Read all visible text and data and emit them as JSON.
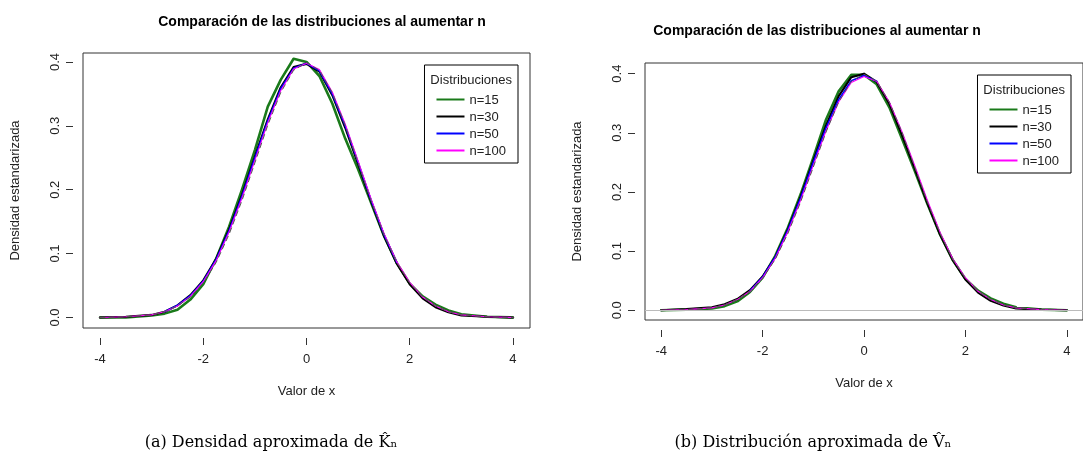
{
  "chart_data": [
    {
      "type": "line",
      "title": "Comparación de las distribuciones al aumentar n",
      "xlabel": "Valor de x",
      "ylabel": "Densidad estandarizada",
      "legend_title": "Distribuciones",
      "legend": "top right",
      "grid": false,
      "marker": "none",
      "xlim": [
        -4.33,
        4.33
      ],
      "xticks": [
        -4,
        -2,
        0,
        2,
        4
      ],
      "ylim": [
        -0.0165,
        0.414
      ],
      "yticks": [
        {
          "value": 0,
          "label": "0.0"
        },
        {
          "value": 0.1,
          "label": "0.1"
        },
        {
          "value": 0.2,
          "label": "0.2"
        },
        {
          "value": 0.3,
          "label": "0.3"
        },
        {
          "value": 0.4,
          "label": "0.4"
        }
      ],
      "x": [
        -4,
        -3.5,
        -3,
        -2.75,
        -2.5,
        -2.25,
        -2,
        -1.75,
        -1.5,
        -1.25,
        -1,
        -0.75,
        -0.5,
        -0.25,
        0,
        0.25,
        0.5,
        0.75,
        1,
        1.25,
        1.5,
        1.75,
        2,
        2.25,
        2.5,
        2.75,
        3,
        3.5,
        4
      ],
      "series": [
        {
          "color": "#555555",
          "line_style": "dashed",
          "values": [
            0,
            0.001,
            0.004,
            0.009,
            0.018,
            0.032,
            0.054,
            0.086,
            0.13,
            0.183,
            0.242,
            0.301,
            0.352,
            0.387,
            0.399,
            0.387,
            0.352,
            0.301,
            0.242,
            0.183,
            0.13,
            0.086,
            0.054,
            0.032,
            0.018,
            0.009,
            0.004,
            0.001,
            0
          ]
        },
        {
          "name": "n=15",
          "color": "#1a7a1a",
          "line_style": "solid",
          "values": [
            0,
            0,
            0.003,
            0.006,
            0.012,
            0.028,
            0.052,
            0.092,
            0.142,
            0.2,
            0.262,
            0.33,
            0.372,
            0.405,
            0.4,
            0.378,
            0.335,
            0.28,
            0.232,
            0.18,
            0.128,
            0.085,
            0.053,
            0.033,
            0.02,
            0.011,
            0.005,
            0.001,
            0
          ]
        },
        {
          "name": "n=30",
          "color": "#000000",
          "line_style": "solid",
          "values": [
            0,
            0.001,
            0.004,
            0.009,
            0.019,
            0.035,
            0.058,
            0.092,
            0.138,
            0.192,
            0.252,
            0.31,
            0.36,
            0.392,
            0.397,
            0.385,
            0.348,
            0.297,
            0.24,
            0.182,
            0.128,
            0.084,
            0.052,
            0.03,
            0.016,
            0.008,
            0.003,
            0.001,
            0
          ]
        },
        {
          "name": "n=50",
          "color": "#0000ff",
          "line_style": "solid",
          "values": [
            null,
            null,
            null,
            0.009,
            0.019,
            0.034,
            0.057,
            0.091,
            0.136,
            0.19,
            0.25,
            0.308,
            0.358,
            0.39,
            0.398,
            0.386,
            0.35,
            0.3,
            0.243,
            0.184,
            0.13,
            0.086,
            null,
            null,
            null,
            null,
            null,
            null,
            null
          ]
        },
        {
          "name": "n=100",
          "color": "#ff00ff",
          "line_style": "solid",
          "values": [
            0,
            0.001,
            0.004,
            0.009,
            0.018,
            0.033,
            0.056,
            0.089,
            0.134,
            0.187,
            0.246,
            0.305,
            0.355,
            0.389,
            0.398,
            0.388,
            0.353,
            0.303,
            0.245,
            0.186,
            0.132,
            0.087,
            0.055,
            0.032,
            0.018,
            0.009,
            0.004,
            0.001,
            0
          ]
        }
      ],
      "annotations": [
        "(a) Densidad aproximada de K̂ₙ"
      ]
    },
    {
      "type": "line",
      "title": "Comparación de las distribuciones al aumentar n",
      "xlabel": "Valor de x",
      "ylabel": "Densidad estandarizada",
      "legend_title": "Distribuciones",
      "legend": "top right",
      "grid": false,
      "marker": "none",
      "xlim": [
        -4.32,
        4.32
      ],
      "xticks": [
        -4,
        -2,
        0,
        2,
        4
      ],
      "ylim": [
        -0.0165,
        0.418
      ],
      "yticks": [
        {
          "value": 0,
          "label": "0.0"
        },
        {
          "value": 0.1,
          "label": "0.1"
        },
        {
          "value": 0.2,
          "label": "0.2"
        },
        {
          "value": 0.3,
          "label": "0.3"
        },
        {
          "value": 0.4,
          "label": "0.4"
        }
      ],
      "ref_lines": [
        {
          "axis": "y",
          "value": 0,
          "color": "#bbbbbb"
        }
      ],
      "x": [
        -4,
        -3.5,
        -3,
        -2.75,
        -2.5,
        -2.25,
        -2,
        -1.75,
        -1.5,
        -1.25,
        -1,
        -0.75,
        -0.5,
        -0.25,
        0,
        0.25,
        0.5,
        0.75,
        1,
        1.25,
        1.5,
        1.75,
        2,
        2.25,
        2.5,
        2.75,
        3,
        3.5,
        4
      ],
      "series": [
        {
          "color": "#555555",
          "line_style": "dashed",
          "values": [
            0,
            0.001,
            0.004,
            0.009,
            0.018,
            0.032,
            0.054,
            0.086,
            0.13,
            0.183,
            0.242,
            0.301,
            0.352,
            0.387,
            0.399,
            0.387,
            0.352,
            0.301,
            0.242,
            0.183,
            0.13,
            0.086,
            0.054,
            0.032,
            0.018,
            0.009,
            0.004,
            0.001,
            0
          ]
        },
        {
          "name": "n=15",
          "color": "#1a7a1a",
          "line_style": "solid",
          "values": [
            0,
            0.001,
            0.003,
            0.007,
            0.015,
            0.031,
            0.055,
            0.092,
            0.14,
            0.196,
            0.258,
            0.322,
            0.37,
            0.398,
            0.398,
            0.382,
            0.343,
            0.29,
            0.236,
            0.18,
            0.128,
            0.085,
            0.053,
            0.033,
            0.02,
            0.011,
            0.005,
            0.001,
            0
          ]
        },
        {
          "name": "n=30",
          "color": "#000000",
          "line_style": "solid",
          "values": [
            0,
            0.002,
            0.005,
            0.01,
            0.019,
            0.034,
            0.057,
            0.09,
            0.137,
            0.192,
            0.253,
            0.312,
            0.362,
            0.394,
            0.4,
            0.386,
            0.349,
            0.296,
            0.24,
            0.181,
            0.128,
            0.085,
            0.052,
            0.03,
            0.016,
            0.008,
            0.003,
            0.001,
            0
          ]
        },
        {
          "name": "n=50",
          "color": "#0000ff",
          "line_style": "solid",
          "values": [
            null,
            null,
            null,
            null,
            null,
            0.033,
            0.056,
            0.09,
            0.136,
            0.19,
            0.25,
            0.308,
            0.356,
            0.388,
            0.397,
            0.387,
            null,
            null,
            null,
            null,
            null,
            null,
            null,
            null,
            null,
            null,
            null,
            null,
            null
          ]
        },
        {
          "name": "n=100",
          "color": "#ff00ff",
          "line_style": "solid",
          "values": [
            0,
            0.001,
            0.004,
            0.009,
            0.018,
            0.032,
            0.055,
            0.088,
            0.133,
            0.186,
            0.245,
            0.303,
            0.352,
            0.385,
            0.395,
            0.387,
            0.352,
            0.302,
            0.245,
            0.186,
            0.132,
            0.087,
            0.055,
            0.032,
            0.018,
            0.009,
            0.004,
            0.001,
            0
          ]
        }
      ],
      "annotations": [
        "(b) Distribución aproximada de V̂ₙ"
      ]
    }
  ]
}
